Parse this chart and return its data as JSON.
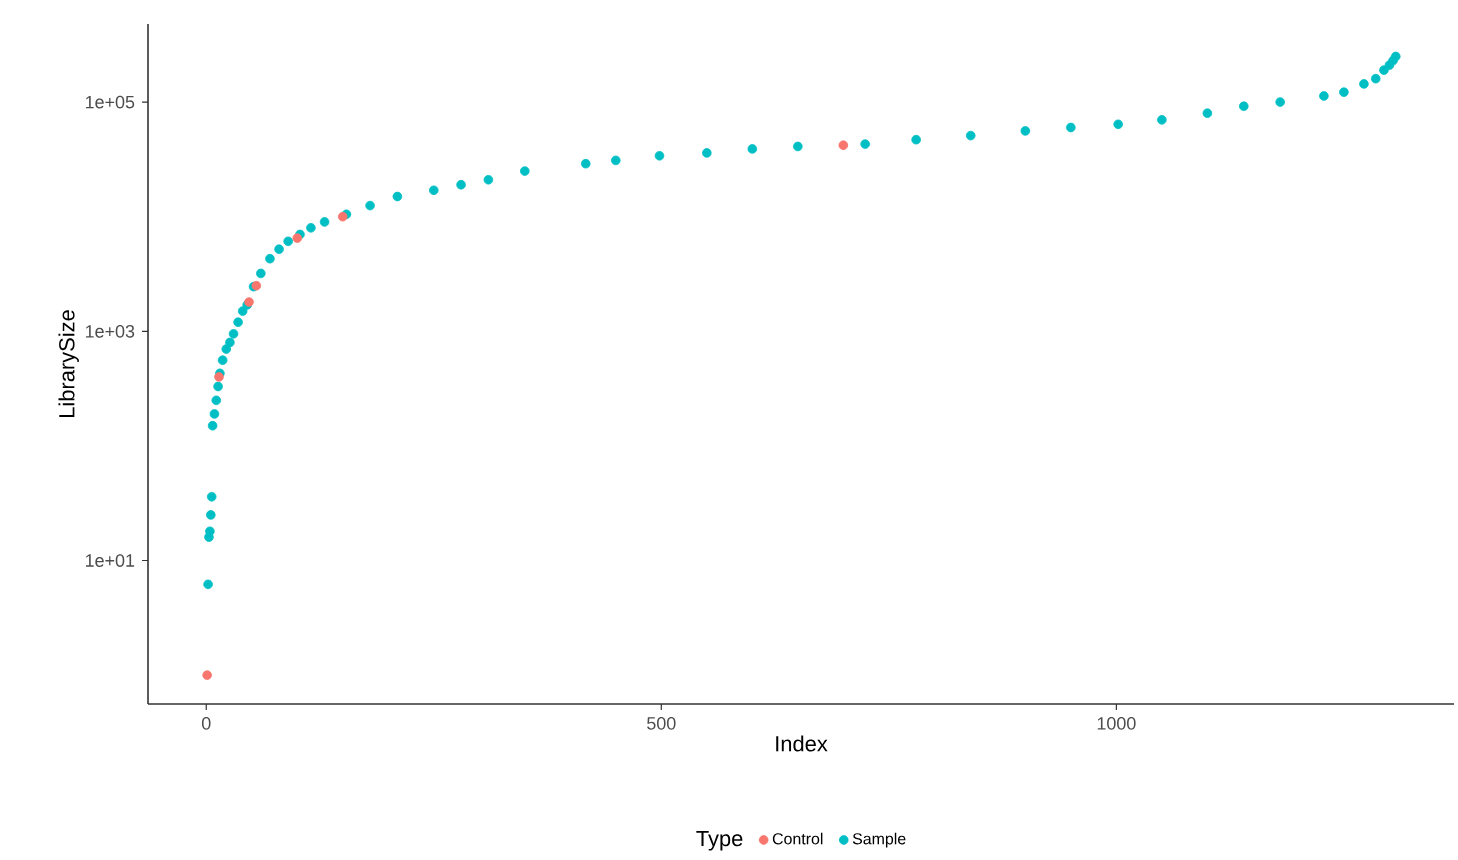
{
  "chart_data": {
    "type": "scatter",
    "xlabel": "Index",
    "ylabel": "LibrarySize",
    "legend_title": "Type",
    "legend": "bottom",
    "log": "y",
    "marker": "circle",
    "grid": false,
    "xlim": [
      -64,
      1371
    ],
    "ylim": [
      0.56,
      480000
    ],
    "xticks": [
      0,
      500,
      1000
    ],
    "yticks": [
      {
        "value": 10,
        "label": "1e+01"
      },
      {
        "value": 1000,
        "label": "1e+03"
      },
      {
        "value": 100000,
        "label": "1e+05"
      }
    ],
    "series": [
      {
        "name": "Control",
        "color": "#f8766d",
        "x": [
          1,
          14,
          47,
          55,
          100,
          150,
          700
        ],
        "values": [
          1,
          400,
          1800,
          2500,
          6500,
          10000,
          42000
        ]
      },
      {
        "name": "Sample",
        "color": "#00bfc4",
        "x": [
          2,
          3,
          4,
          5,
          6,
          7,
          9,
          11,
          13,
          15,
          18,
          22,
          26,
          30,
          35,
          40,
          45,
          52,
          60,
          70,
          80,
          90,
          103,
          115,
          130,
          154,
          180,
          210,
          250,
          280,
          310,
          350,
          417,
          450,
          498,
          550,
          600,
          650,
          724,
          780,
          840,
          900,
          950,
          1002,
          1050,
          1100,
          1140,
          1180,
          1228,
          1250,
          1272,
          1285,
          1294,
          1300,
          1304,
          1307
        ],
        "values": [
          6.2,
          16,
          18,
          25,
          36,
          150,
          190,
          250,
          330,
          430,
          560,
          700,
          800,
          950,
          1200,
          1500,
          1700,
          2450,
          3200,
          4300,
          5200,
          6100,
          7000,
          8000,
          9000,
          10500,
          12500,
          15000,
          17000,
          19000,
          21000,
          25000,
          29000,
          31000,
          34000,
          36000,
          39000,
          41000,
          43000,
          47000,
          51000,
          56000,
          60000,
          64000,
          70000,
          80000,
          92000,
          100000,
          113000,
          122000,
          144000,
          160000,
          190000,
          210000,
          230000,
          250000
        ]
      }
    ]
  }
}
